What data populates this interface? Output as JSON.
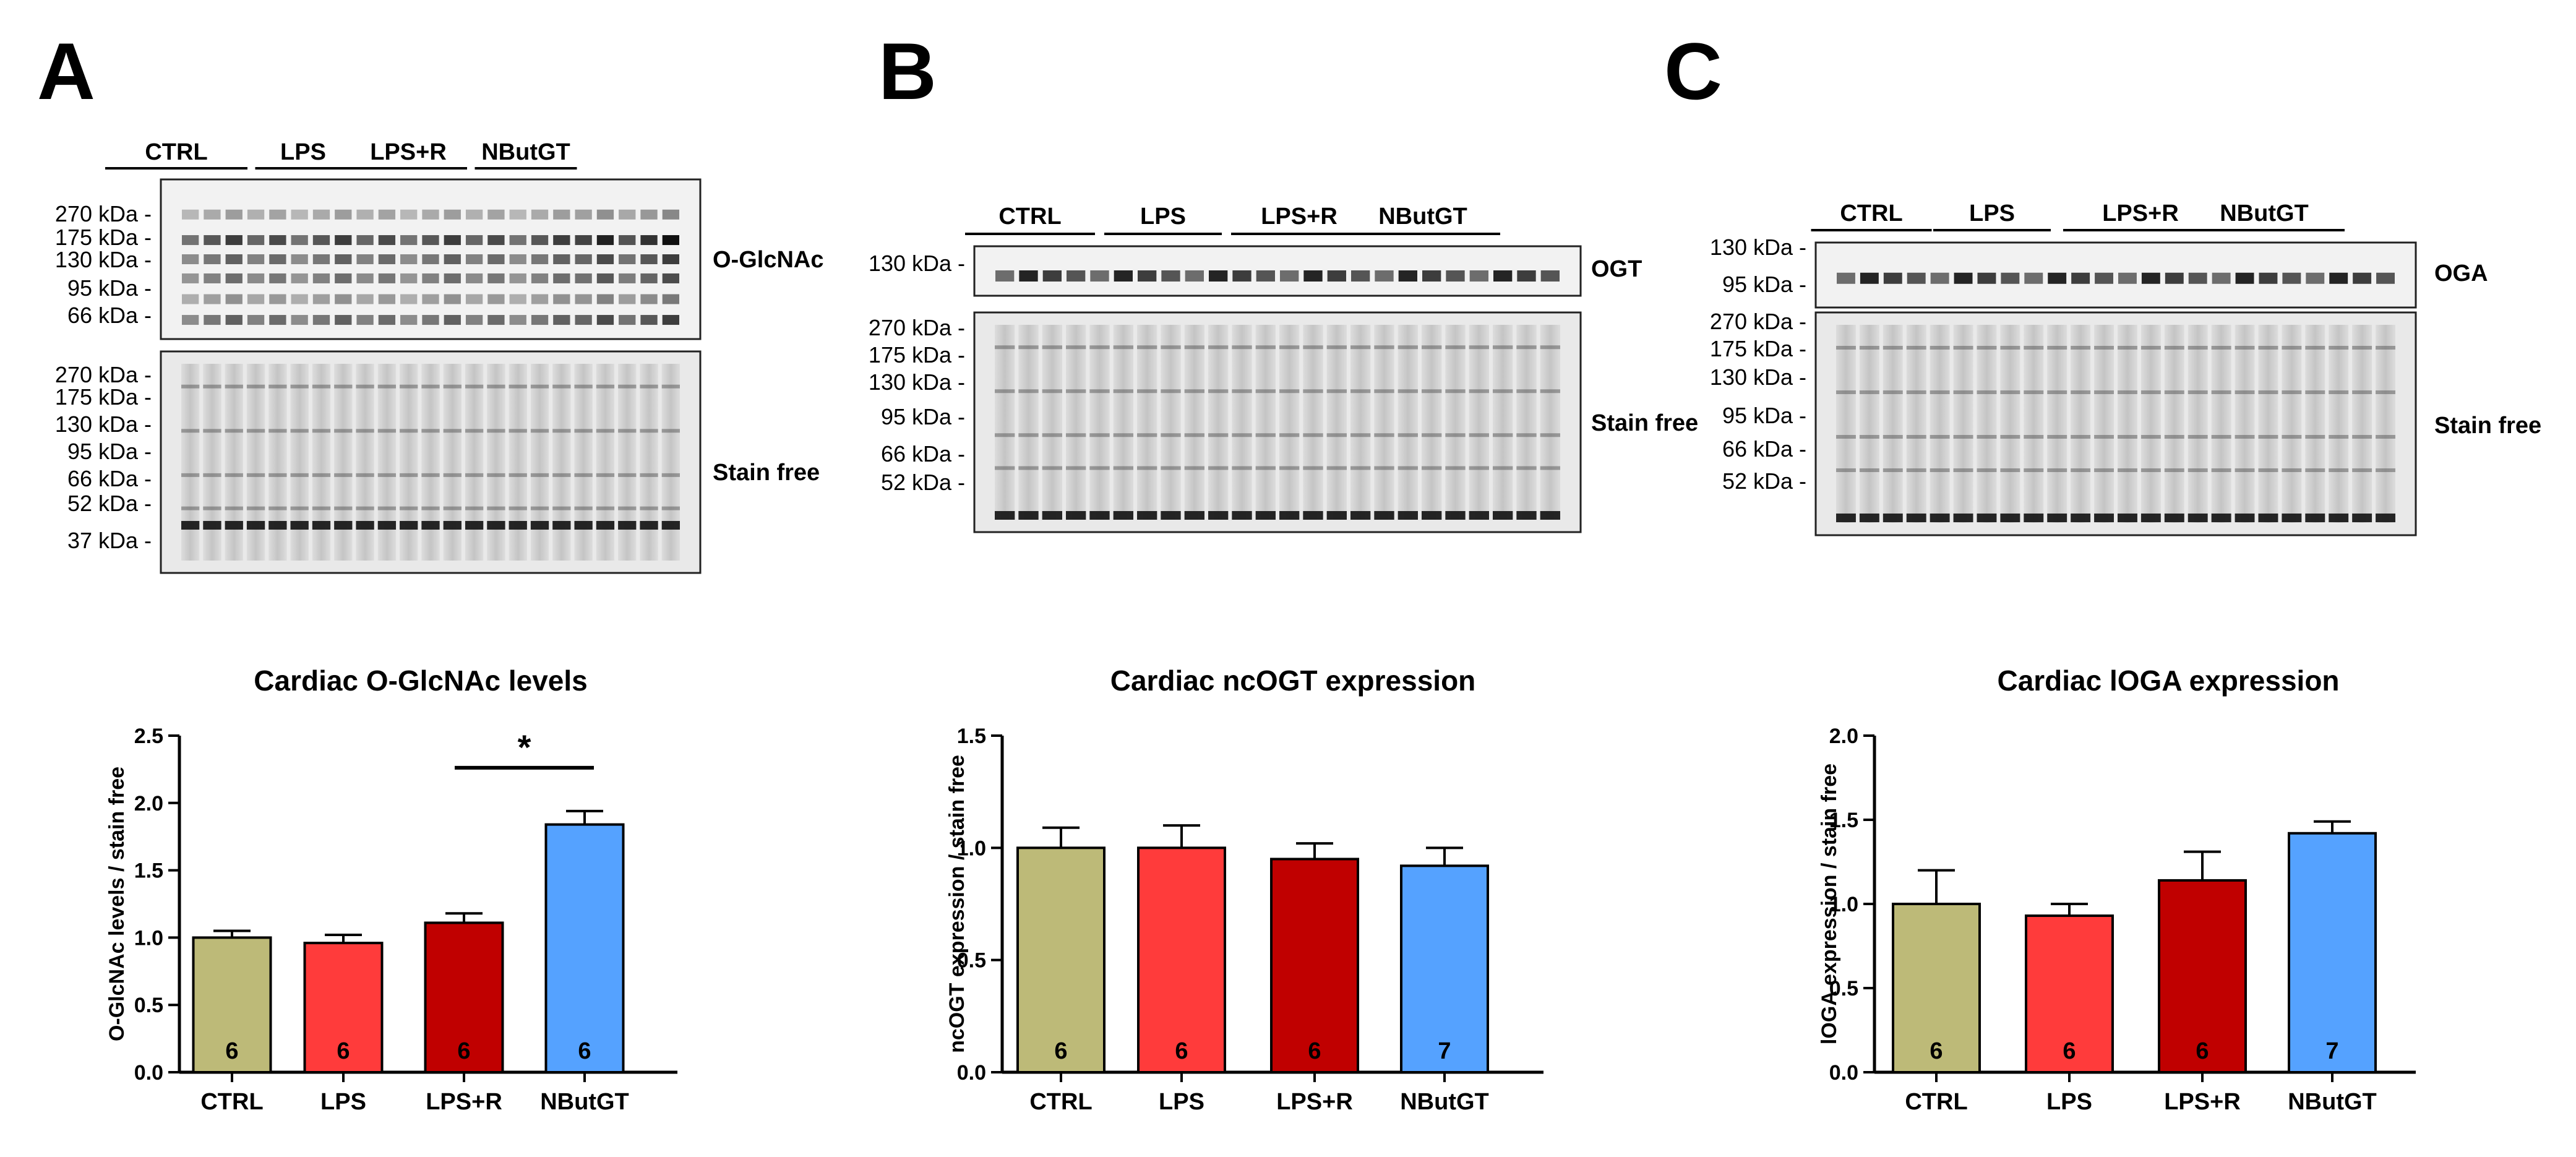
{
  "figure_labels": [
    "A",
    "B",
    "C"
  ],
  "blots": [
    {
      "groups": [
        "CTRL",
        "LPS",
        "LPS+R",
        "NButGT"
      ],
      "top_label": "O-GlcNAc",
      "top_markers": [
        "270 kDa",
        "175 kDa",
        "130 kDa",
        "95 kDa",
        "66 kDa"
      ],
      "bottom_label": "Stain free",
      "bottom_markers": [
        "270 kDa",
        "175 kDa",
        "130 kDa",
        "95 kDa",
        "66 kDa",
        "52 kDa",
        "37 kDa"
      ]
    },
    {
      "groups": [
        "CTRL",
        "LPS",
        "LPS+R",
        "NButGT"
      ],
      "top_label": "OGT",
      "top_markers": [
        "130 kDa"
      ],
      "bottom_label": "Stain free",
      "bottom_markers": [
        "270 kDa",
        "175 kDa",
        "130 kDa",
        "95 kDa",
        "66 kDa",
        "52 kDa"
      ]
    },
    {
      "groups": [
        "CTRL",
        "LPS",
        "LPS+R",
        "NButGT"
      ],
      "top_label": "OGA",
      "top_markers": [
        "130 kDa",
        "95 kDa"
      ],
      "bottom_label": "Stain free",
      "bottom_markers": [
        "270 kDa",
        "175 kDa",
        "130 kDa",
        "95 kDa",
        "66 kDa",
        "52 kDa"
      ]
    }
  ],
  "chart_data": [
    {
      "type": "bar",
      "title": "Cardiac O-GlcNAc levels",
      "categories": [
        "CTRL",
        "LPS",
        "LPS+R",
        "NButGT"
      ],
      "values": [
        1.0,
        0.96,
        1.11,
        1.84
      ],
      "errors": [
        0.05,
        0.06,
        0.07,
        0.1
      ],
      "n": [
        "6",
        "6",
        "6",
        "6"
      ],
      "ylabel": "O-GlcNAc levels / stain free",
      "ylim": [
        0,
        2.5
      ],
      "yticks": [
        "0.0",
        "0.5",
        "1.0",
        "1.5",
        "2.0",
        "2.5"
      ],
      "significance": {
        "from": "LPS+R",
        "to": "NButGT",
        "label": "*"
      }
    },
    {
      "type": "bar",
      "title": "Cardiac ncOGT expression",
      "categories": [
        "CTRL",
        "LPS",
        "LPS+R",
        "NButGT"
      ],
      "values": [
        1.0,
        1.0,
        0.95,
        0.92
      ],
      "errors": [
        0.09,
        0.1,
        0.07,
        0.08
      ],
      "n": [
        "6",
        "6",
        "6",
        "7"
      ],
      "ylabel": "ncOGT expression / stain free",
      "ylim": [
        0,
        1.5
      ],
      "yticks": [
        "0.0",
        "0.5",
        "1.0",
        "1.5"
      ]
    },
    {
      "type": "bar",
      "title": "Cardiac lOGA expression",
      "categories": [
        "CTRL",
        "LPS",
        "LPS+R",
        "NButGT"
      ],
      "values": [
        1.0,
        0.93,
        1.14,
        1.42
      ],
      "errors": [
        0.2,
        0.07,
        0.17,
        0.07
      ],
      "n": [
        "6",
        "6",
        "6",
        "7"
      ],
      "ylabel": "lOGA expression / stain free",
      "ylim": [
        0,
        2.0
      ],
      "yticks": [
        "0.0",
        "0.5",
        "1.0",
        "1.5",
        "2.0"
      ]
    }
  ],
  "colors": {
    "CTRL": "#bdba78",
    "LPS": "#ff3b3b",
    "LPS+R": "#c00000",
    "NButGT": "#55a2ff",
    "axis": "#000000"
  }
}
